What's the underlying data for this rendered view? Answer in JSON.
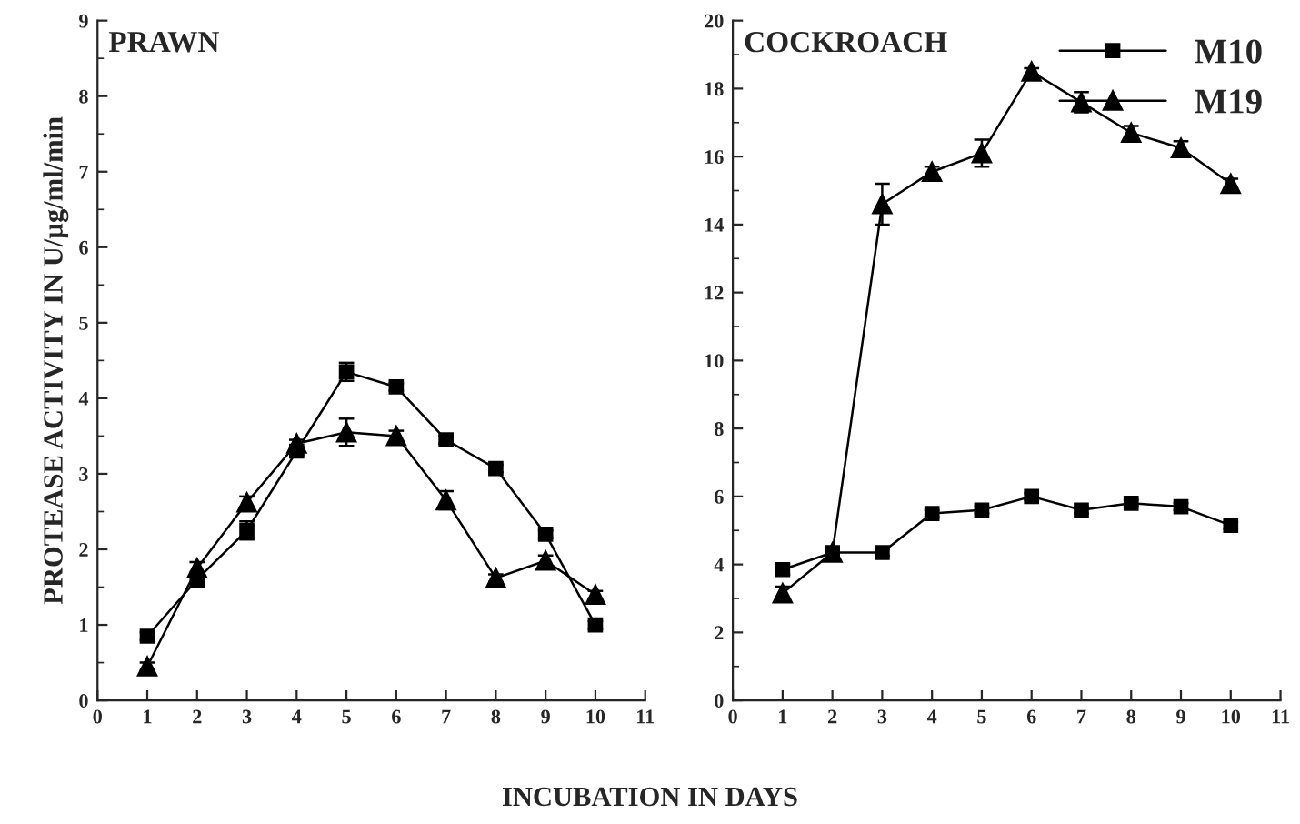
{
  "chart_data": [
    {
      "type": "line",
      "title": "PRAWN",
      "ylabel": "PROTEASE ACTIVITY IN U/µg/ml/min",
      "xlabel": "INCUBATION IN DAYS",
      "x": [
        1,
        2,
        3,
        4,
        5,
        6,
        7,
        8,
        9,
        10
      ],
      "series": [
        {
          "color": "#000000",
          "marker": "square",
          "values": [
            0.85,
            1.6,
            2.25,
            3.3,
            4.35,
            4.15,
            3.45,
            3.07,
            2.2,
            1.0
          ],
          "errors": [
            0.05,
            0.1,
            0.12,
            0.05,
            0.12,
            0.05,
            0.05,
            0.05,
            0.05,
            0.05
          ]
        },
        {
          "color": "#000000",
          "marker": "triangle",
          "values": [
            0.45,
            1.75,
            2.62,
            3.4,
            3.55,
            3.5,
            2.65,
            1.62,
            1.85,
            1.4
          ],
          "errors": [
            0.05,
            0.08,
            0.08,
            0.05,
            0.18,
            0.07,
            0.12,
            0.05,
            0.07,
            0.05
          ]
        }
      ],
      "xlim": [
        0,
        11
      ],
      "xticks": [
        0,
        1,
        2,
        3,
        4,
        5,
        6,
        7,
        8,
        9,
        10,
        11
      ],
      "ylim": [
        0,
        9
      ],
      "yticks": [
        0,
        1,
        2,
        3,
        4,
        5,
        6,
        7,
        8,
        9
      ],
      "grid": false,
      "legend": false,
      "line_style": "solid"
    },
    {
      "type": "line",
      "title": "COCKROACH",
      "x": [
        1,
        2,
        3,
        4,
        5,
        6,
        7,
        8,
        9,
        10
      ],
      "series": [
        {
          "name": "M10",
          "color": "#000000",
          "marker": "square",
          "values": [
            3.85,
            4.35,
            4.35,
            5.5,
            5.6,
            6.0,
            5.6,
            5.8,
            5.7,
            5.15
          ],
          "errors": [
            0.15,
            0.1,
            0.1,
            0.1,
            0.1,
            0.1,
            0.1,
            0.1,
            0.1,
            0.1
          ]
        },
        {
          "name": "M19",
          "color": "#000000",
          "marker": "triangle",
          "values": [
            3.15,
            4.35,
            14.6,
            15.55,
            16.1,
            18.5,
            17.6,
            16.7,
            16.25,
            15.2
          ],
          "errors": [
            0.2,
            0.15,
            0.6,
            0.15,
            0.4,
            0.1,
            0.3,
            0.2,
            0.2,
            0.15
          ]
        }
      ],
      "xlim": [
        0,
        11
      ],
      "xticks": [
        0,
        1,
        2,
        3,
        4,
        5,
        6,
        7,
        8,
        9,
        10,
        11
      ],
      "ylim": [
        0,
        20
      ],
      "yticks": [
        0,
        2,
        4,
        6,
        8,
        10,
        12,
        14,
        16,
        18,
        20
      ],
      "grid": false,
      "legend": "top right",
      "line_style": "solid"
    }
  ]
}
